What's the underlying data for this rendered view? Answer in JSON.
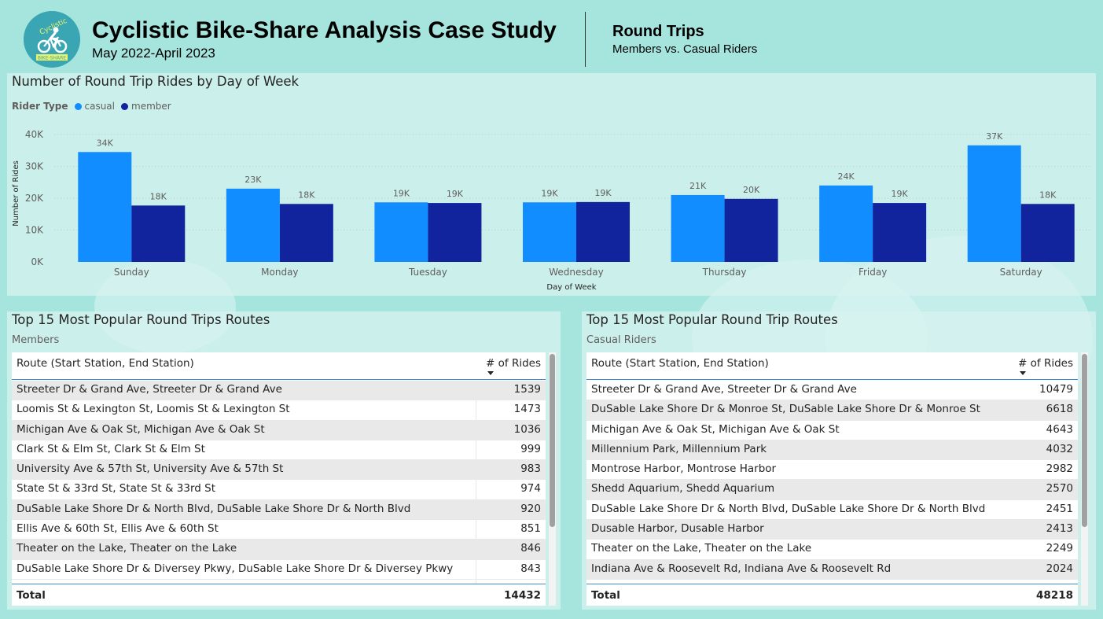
{
  "header": {
    "logo_text_top": "Cyclistic",
    "logo_text_bottom": "BIKE-SHARE",
    "title": "Cyclistic Bike-Share Analysis Case Study",
    "date_range": "May 2022-April 2023",
    "section_title": "Round Trips",
    "section_subtitle": "Members vs. Casual Riders"
  },
  "chart_panel": {
    "title": "Number of Round Trip Rides by Day of Week",
    "legend_title": "Rider Type",
    "legend": [
      {
        "label": "casual",
        "color": "#118dff"
      },
      {
        "label": "member",
        "color": "#12239e"
      }
    ]
  },
  "chart_data": {
    "type": "bar",
    "title": "Number of Round Trip Rides by Day of Week",
    "xlabel": "Day of Week",
    "ylabel": "Number of Rides",
    "ylim": [
      0,
      40000
    ],
    "yticks": [
      "0K",
      "10K",
      "20K",
      "30K",
      "40K"
    ],
    "categories": [
      "Sunday",
      "Monday",
      "Tuesday",
      "Wednesday",
      "Thursday",
      "Friday",
      "Saturday"
    ],
    "series": [
      {
        "name": "casual",
        "color": "#118dff",
        "values": [
          34500,
          23000,
          18700,
          18700,
          21000,
          24000,
          36600
        ],
        "labels": [
          "34K",
          "23K",
          "19K",
          "19K",
          "21K",
          "24K",
          "37K"
        ]
      },
      {
        "name": "member",
        "color": "#12239e",
        "values": [
          17700,
          18200,
          18500,
          18800,
          19800,
          18500,
          18200
        ],
        "labels": [
          "18K",
          "18K",
          "19K",
          "19K",
          "20K",
          "19K",
          "18K"
        ]
      }
    ],
    "legend_position": "top-left",
    "grid": true
  },
  "members_table": {
    "title": "Top 15 Most Popular Round Trips Routes",
    "subtitle": "Members",
    "col_route": "Route (Start Station, End Station)",
    "col_rides": "# of Rides",
    "rows": [
      {
        "route": "Streeter Dr & Grand Ave, Streeter Dr & Grand Ave",
        "rides": "1539"
      },
      {
        "route": "Loomis St & Lexington St, Loomis St & Lexington St",
        "rides": "1473"
      },
      {
        "route": "Michigan Ave & Oak St, Michigan Ave & Oak St",
        "rides": "1036"
      },
      {
        "route": "Clark St & Elm St, Clark St & Elm St",
        "rides": "999"
      },
      {
        "route": "University Ave & 57th St, University Ave & 57th St",
        "rides": "983"
      },
      {
        "route": "State St & 33rd St, State St & 33rd St",
        "rides": "974"
      },
      {
        "route": "DuSable Lake Shore Dr & North Blvd, DuSable Lake Shore Dr & North Blvd",
        "rides": "920"
      },
      {
        "route": "Ellis Ave & 60th St, Ellis Ave & 60th St",
        "rides": "851"
      },
      {
        "route": "Theater on the Lake, Theater on the Lake",
        "rides": "846"
      },
      {
        "route": "DuSable Lake Shore Dr & Diversey Pkwy, DuSable Lake Shore Dr & Diversey Pkwy",
        "rides": "843"
      }
    ],
    "total_label": "Total",
    "total_value": "14432"
  },
  "casual_table": {
    "title": "Top 15 Most Popular Round Trip Routes",
    "subtitle": "Casual Riders",
    "col_route": "Route (Start Station, End Station)",
    "col_rides": "# of Rides",
    "rows": [
      {
        "route": "Streeter Dr & Grand Ave, Streeter Dr & Grand Ave",
        "rides": "10479"
      },
      {
        "route": "DuSable Lake Shore Dr & Monroe St, DuSable Lake Shore Dr & Monroe St",
        "rides": "6618"
      },
      {
        "route": "Michigan Ave & Oak St, Michigan Ave & Oak St",
        "rides": "4643"
      },
      {
        "route": "Millennium Park, Millennium Park",
        "rides": "4032"
      },
      {
        "route": "Montrose Harbor, Montrose Harbor",
        "rides": "2982"
      },
      {
        "route": "Shedd Aquarium, Shedd Aquarium",
        "rides": "2570"
      },
      {
        "route": "DuSable Lake Shore Dr & North Blvd, DuSable Lake Shore Dr & North Blvd",
        "rides": "2451"
      },
      {
        "route": "Dusable Harbor, Dusable Harbor",
        "rides": "2413"
      },
      {
        "route": "Theater on the Lake, Theater on the Lake",
        "rides": "2249"
      },
      {
        "route": "Indiana Ave & Roosevelt Rd, Indiana Ave & Roosevelt Rd",
        "rides": "2024"
      }
    ],
    "total_label": "Total",
    "total_value": "48218"
  }
}
